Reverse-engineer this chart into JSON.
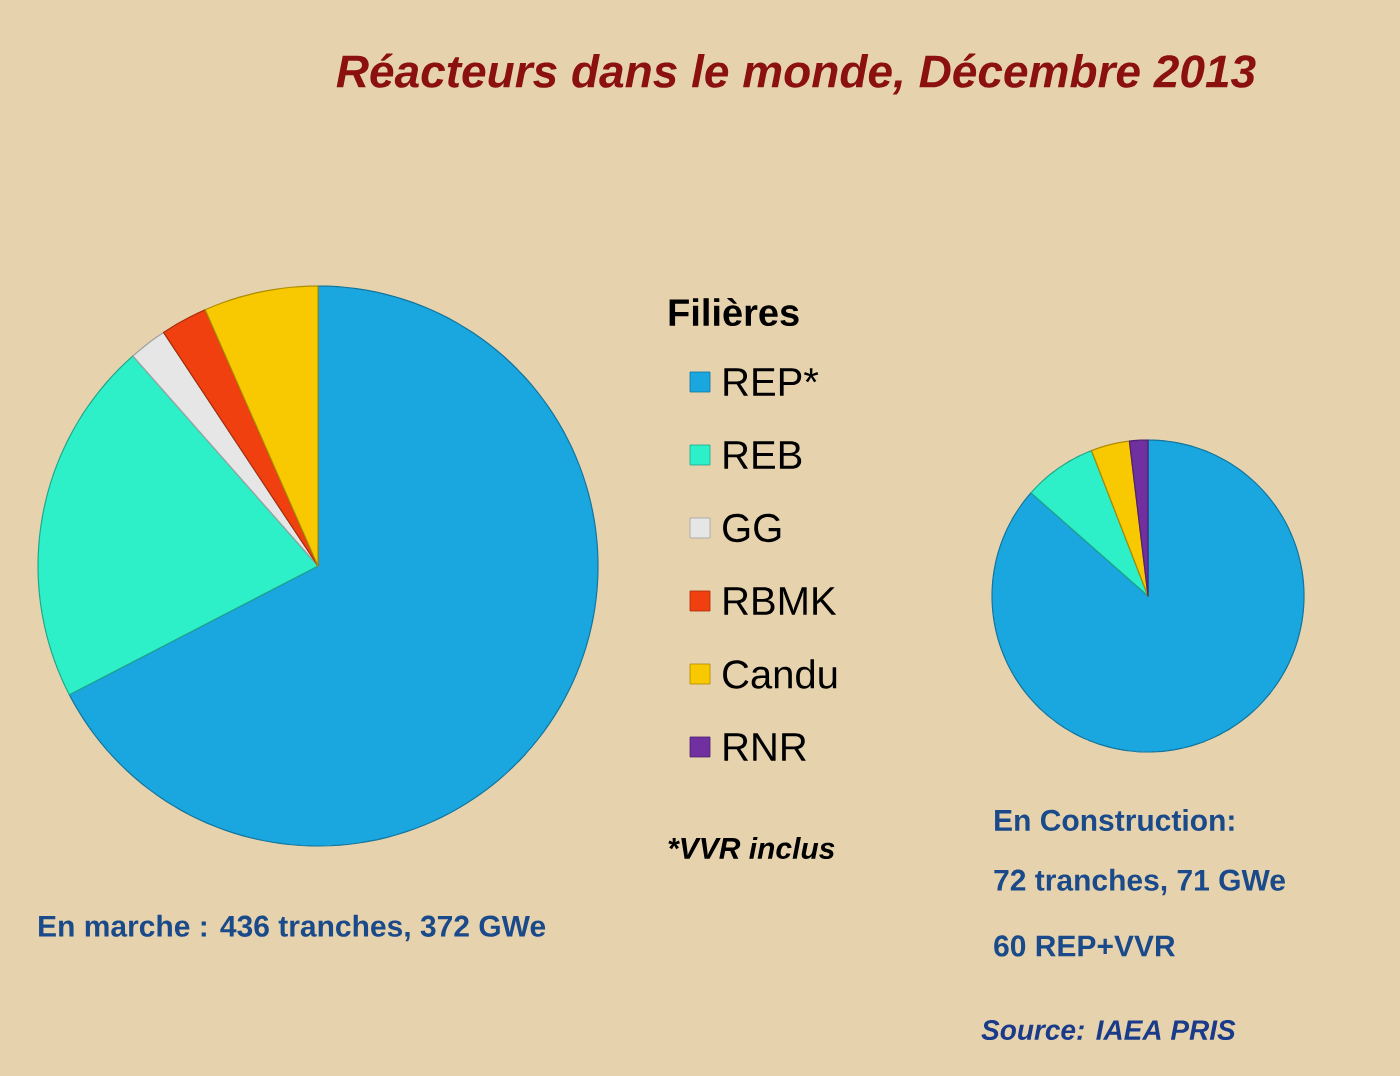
{
  "chart_data": [
    {
      "type": "pie",
      "title": "Réacteurs dans le monde, Décembre 2013",
      "legend_title": "Filières",
      "legend": "right",
      "categories": [
        "REP*",
        "REB",
        "GG",
        "RBMK",
        "Candu",
        "RNR"
      ],
      "values": [
        67.4,
        21.1,
        2.2,
        2.7,
        6.6,
        0
      ],
      "colors": [
        "#1aa7e0",
        "#2ef0c8",
        "#e6e6e6",
        "#f04010",
        "#f8c800",
        "#7030a0"
      ],
      "annotations": [
        "*VVR inclus",
        "En marche : 436 tranches, 372 GWe"
      ]
    },
    {
      "type": "pie",
      "categories": [
        null,
        null,
        null,
        null
      ],
      "values": [
        86.5,
        7.6,
        4.0,
        1.9
      ],
      "colors": [
        "#1aa7e0",
        "#2ef0c8",
        "#f8c800",
        "#7030a0"
      ],
      "annotations": [
        "En Construction:",
        "72 tranches, 71 GWe",
        "60 REP+VVR",
        "Source: IAEA PRIS"
      ]
    }
  ]
}
